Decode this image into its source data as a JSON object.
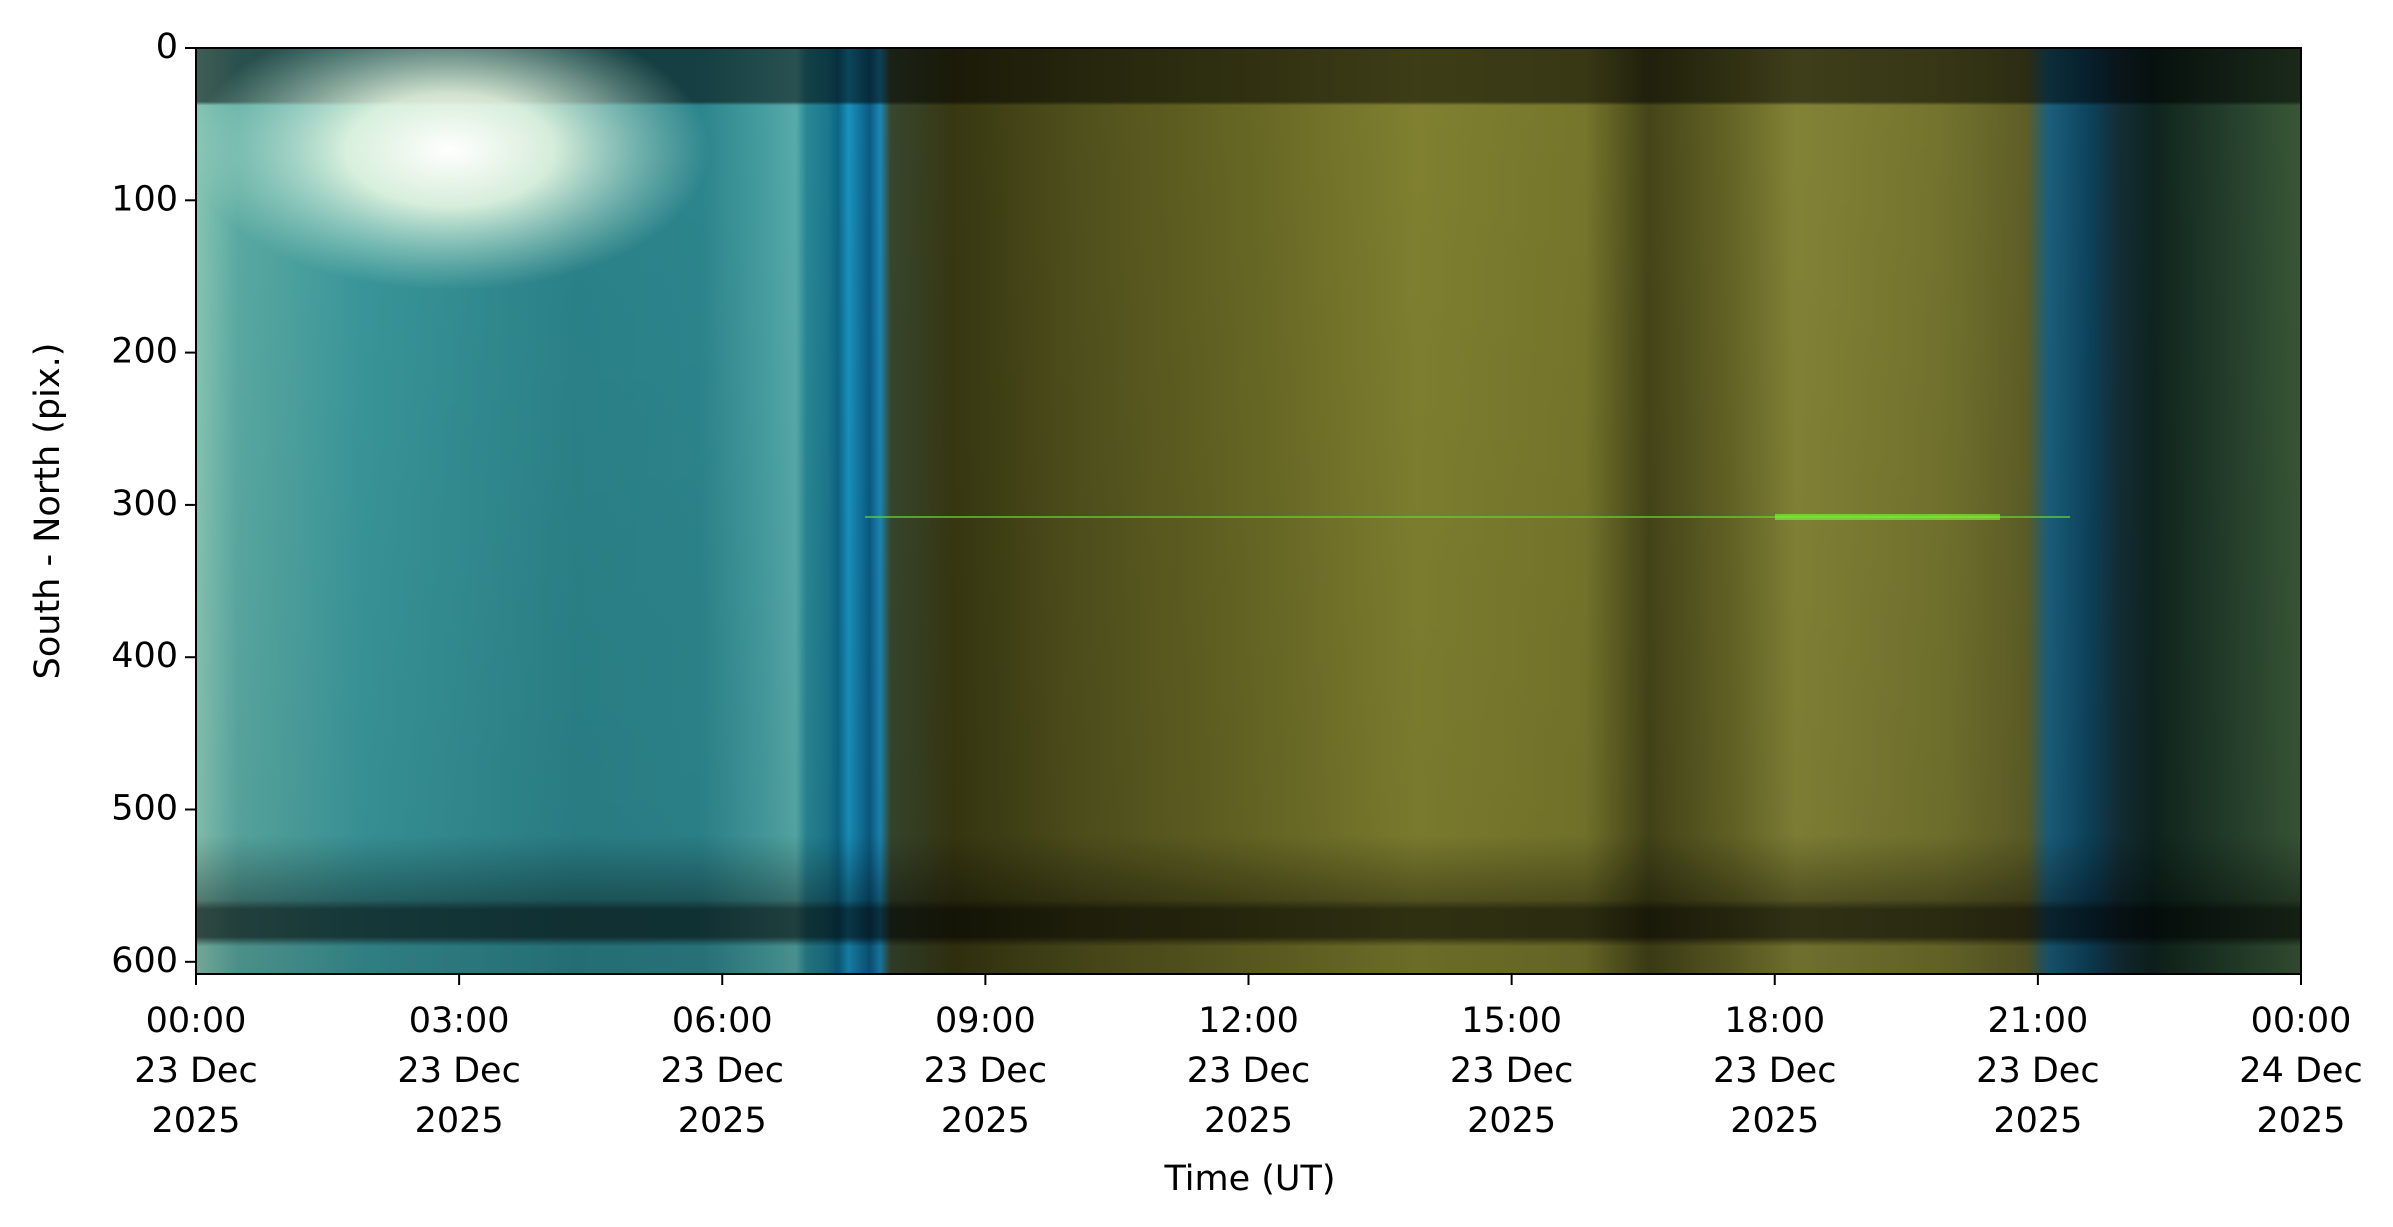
{
  "chart_data": {
    "type": "keogram",
    "xlabel": "Time (UT)",
    "ylabel": "South - North (pix.)",
    "xlim": [
      "2025-12-23 00:00",
      "2025-12-24 00:00"
    ],
    "xticks": [
      {
        "value": "2025-12-23 00:00",
        "label": "00:00\n23 Dec\n2025"
      },
      {
        "value": "2025-12-23 03:00",
        "label": "03:00\n23 Dec\n2025"
      },
      {
        "value": "2025-12-23 06:00",
        "label": "06:00\n23 Dec\n2025"
      },
      {
        "value": "2025-12-23 09:00",
        "label": "09:00\n23 Dec\n2025"
      },
      {
        "value": "2025-12-23 12:00",
        "label": "12:00\n23 Dec\n2025"
      },
      {
        "value": "2025-12-23 15:00",
        "label": "15:00\n23 Dec\n2025"
      },
      {
        "value": "2025-12-23 18:00",
        "label": "18:00\n23 Dec\n2025"
      },
      {
        "value": "2025-12-23 21:00",
        "label": "21:00\n23 Dec\n2025"
      },
      {
        "value": "2025-12-24 00:00",
        "label": "00:00\n24 Dec\n2025"
      }
    ],
    "ylim": [
      0,
      608
    ],
    "y_inverted": true,
    "yticks": [
      0,
      100,
      200,
      300,
      400,
      500,
      600
    ]
  }
}
